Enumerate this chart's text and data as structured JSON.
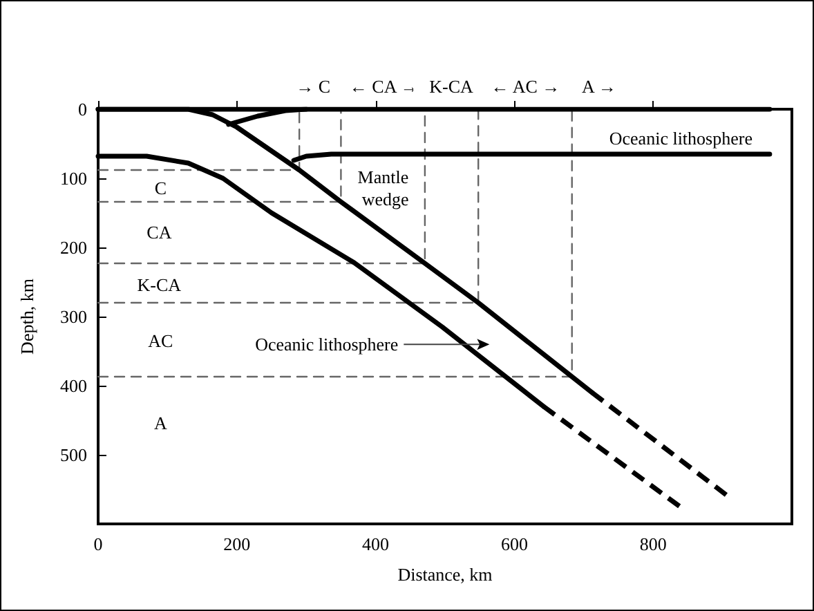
{
  "chart_data": {
    "type": "line",
    "xlabel": "Distance, km",
    "ylabel": "Depth, km",
    "xlim": [
      0,
      1000
    ],
    "xticks": [
      0,
      200,
      400,
      600,
      800
    ],
    "ylim": [
      600,
      0
    ],
    "yticks": [
      0,
      100,
      200,
      300,
      400,
      500
    ],
    "grid": false,
    "marker": "none",
    "series": [
      {
        "color": "#000000",
        "line_style": "solid",
        "x": [
          0,
          968
        ],
        "values": [
          0,
          0
        ]
      },
      {
        "color": "#000000",
        "line_style": "solid",
        "x": [
          188,
          230,
          270,
          300
        ],
        "values": [
          22,
          10,
          2,
          0
        ]
      },
      {
        "color": "#000000",
        "line_style": "solid",
        "x": [
          282,
          300,
          336,
          968
        ],
        "values": [
          74,
          68,
          65,
          65
        ]
      },
      {
        "color": "#000000",
        "line_style": "solid",
        "x": [
          0,
          130,
          165,
          200,
          290,
          350,
          471,
          548,
          683,
          712
        ],
        "values": [
          0,
          0,
          8,
          26,
          88,
          134,
          223,
          280,
          387,
          410
        ]
      },
      {
        "color": "#000000",
        "line_style": "dashed",
        "x": [
          712,
          908
        ],
        "values": [
          410,
          560
        ]
      },
      {
        "color": "#000000",
        "line_style": "solid",
        "x": [
          0,
          70,
          130,
          180,
          250,
          369,
          496,
          642
        ],
        "values": [
          68,
          68,
          78,
          100,
          150,
          222,
          315,
          430
        ]
      },
      {
        "color": "#000000",
        "line_style": "dashed",
        "x": [
          642,
          840
        ],
        "values": [
          430,
          576
        ]
      },
      {
        "color": "#666666",
        "line_style": "dashed",
        "x": [
          0,
          290,
          290
        ],
        "values": [
          88,
          88,
          0
        ]
      },
      {
        "color": "#666666",
        "line_style": "dashed",
        "x": [
          0,
          350,
          350
        ],
        "values": [
          134,
          134,
          0
        ]
      },
      {
        "color": "#666666",
        "line_style": "dashed",
        "x": [
          0,
          471,
          471
        ],
        "values": [
          223,
          223,
          0
        ]
      },
      {
        "color": "#666666",
        "line_style": "dashed",
        "x": [
          0,
          548,
          548
        ],
        "values": [
          280,
          280,
          0
        ]
      },
      {
        "color": "#666666",
        "line_style": "dashed",
        "x": [
          0,
          683,
          683
        ],
        "values": [
          387,
          387,
          0
        ]
      }
    ],
    "annotations": [
      "Oceanic lithosphere",
      "Mantle wedge",
      "Oceanic lithosphere",
      "C",
      "CA",
      "K-CA",
      "AC",
      "A",
      "→ C",
      "← CA →",
      "K-CA",
      "← AC →",
      "A →"
    ]
  }
}
